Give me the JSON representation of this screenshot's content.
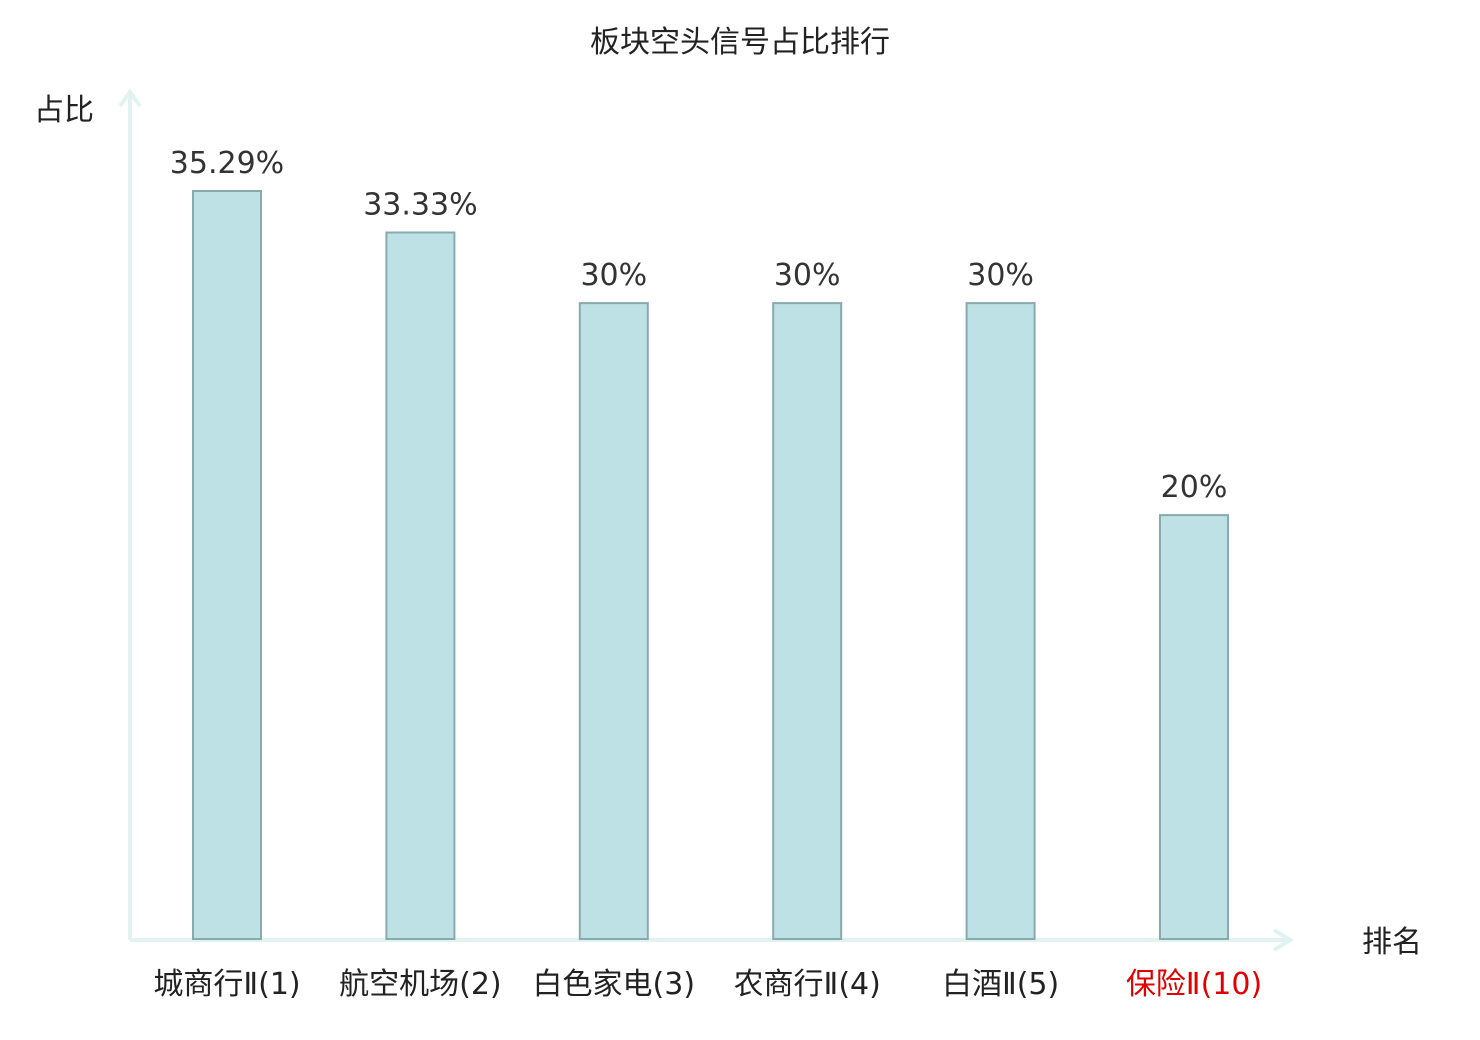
{
  "chart_data": {
    "type": "bar",
    "title": "板块空头信号占比排行",
    "ylabel": "占比",
    "xlabel": "排名",
    "categories": [
      "城商行Ⅱ(1)",
      "航空机场(2)",
      "白色家电(3)",
      "农商行Ⅱ(4)",
      "白酒Ⅱ(5)",
      "保险Ⅱ(10)"
    ],
    "values": [
      35.29,
      33.33,
      30,
      30,
      30,
      20
    ],
    "value_labels": [
      "35.29%",
      "33.33%",
      "30%",
      "30%",
      "30%",
      "20%"
    ],
    "highlight_index": 5,
    "ylim": [
      0,
      40
    ],
    "grid": false,
    "colors": {
      "bar_fill": "#bde1e4",
      "bar_stroke": "#88aaac",
      "axis": "#e0f2f1",
      "label": "#222222",
      "value": "#333333",
      "highlight": "#e00000"
    }
  }
}
